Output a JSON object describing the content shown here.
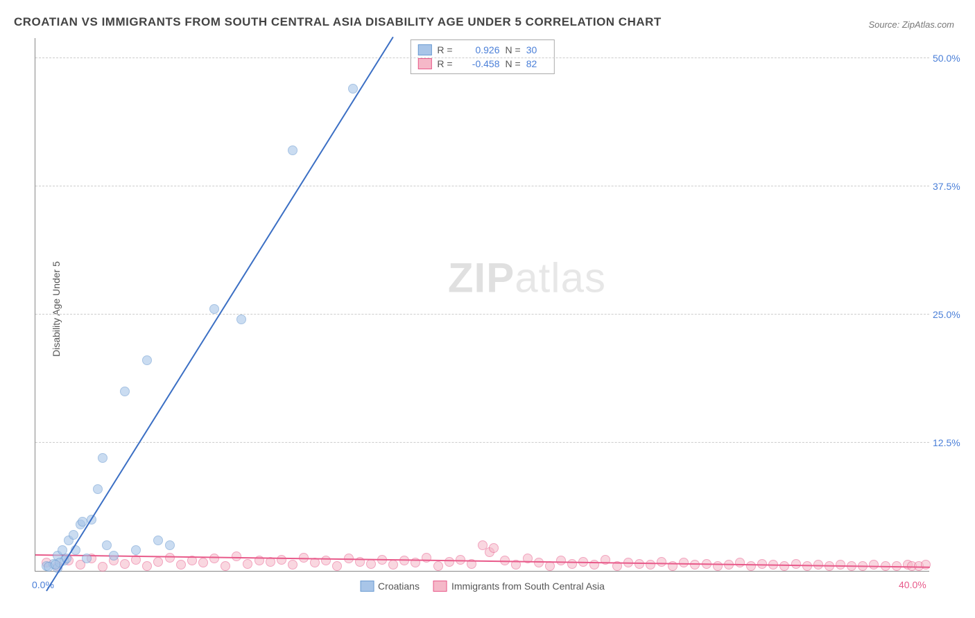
{
  "title": "CROATIAN VS IMMIGRANTS FROM SOUTH CENTRAL ASIA DISABILITY AGE UNDER 5 CORRELATION CHART",
  "source": "Source: ZipAtlas.com",
  "ylabel": "Disability Age Under 5",
  "watermark_bold": "ZIP",
  "watermark_rest": "atlas",
  "chart": {
    "type": "scatter",
    "background_color": "#ffffff",
    "grid_color": "#cccccc",
    "axis_color": "#888888",
    "xlim": [
      0,
      40
    ],
    "ylim": [
      0,
      52
    ],
    "yticks": [
      {
        "v": 12.5,
        "label": "12.5%"
      },
      {
        "v": 25.0,
        "label": "25.0%"
      },
      {
        "v": 37.5,
        "label": "37.5%"
      },
      {
        "v": 50.0,
        "label": "50.0%"
      }
    ],
    "xtick_left": {
      "v": 0,
      "label": "0.0%"
    },
    "xtick_right": {
      "v": 40,
      "label": "40.0%"
    },
    "label_fontsize": 14,
    "title_fontsize": 17
  },
  "series": {
    "croatians": {
      "label": "Croatians",
      "marker_color": "#a8c5e8",
      "marker_border": "#6b9bd1",
      "marker_opacity": 0.6,
      "marker_size": 14,
      "line_color": "#3b6fc4",
      "line_width": 2,
      "R": "0.926",
      "N": "30",
      "trend": {
        "x1": 0.5,
        "y1": -2,
        "x2": 16,
        "y2": 52
      },
      "points": [
        [
          0.5,
          0.5
        ],
        [
          0.8,
          0.7
        ],
        [
          1.0,
          1.5
        ],
        [
          1.2,
          2.0
        ],
        [
          1.3,
          1.0
        ],
        [
          1.5,
          3.0
        ],
        [
          1.7,
          3.5
        ],
        [
          1.8,
          2.0
        ],
        [
          2.0,
          4.5
        ],
        [
          2.1,
          4.8
        ],
        [
          2.3,
          1.2
        ],
        [
          2.5,
          5.0
        ],
        [
          2.8,
          8.0
        ],
        [
          3.0,
          11.0
        ],
        [
          3.2,
          2.5
        ],
        [
          3.5,
          1.5
        ],
        [
          4.0,
          17.5
        ],
        [
          4.5,
          2.0
        ],
        [
          5.0,
          20.5
        ],
        [
          5.5,
          3.0
        ],
        [
          6.0,
          2.5
        ],
        [
          8.0,
          25.5
        ],
        [
          9.2,
          24.5
        ],
        [
          11.5,
          41.0
        ],
        [
          14.2,
          47.0
        ],
        [
          1.0,
          0.3
        ],
        [
          0.6,
          0.4
        ],
        [
          1.1,
          0.8
        ],
        [
          1.4,
          1.2
        ],
        [
          0.9,
          0.6
        ]
      ]
    },
    "immigrants": {
      "label": "Immigrants from South Central Asia",
      "marker_color": "#f5b8c8",
      "marker_border": "#e85a8a",
      "marker_opacity": 0.55,
      "marker_size": 14,
      "line_color": "#e85a8a",
      "line_width": 2,
      "R": "-0.458",
      "N": "82",
      "trend": {
        "x1": 0,
        "y1": 1.5,
        "x2": 40,
        "y2": 0.3
      },
      "points": [
        [
          0.5,
          0.8
        ],
        [
          1.0,
          0.5
        ],
        [
          1.5,
          1.0
        ],
        [
          2.0,
          0.6
        ],
        [
          2.5,
          1.2
        ],
        [
          3.0,
          0.4
        ],
        [
          3.5,
          1.0
        ],
        [
          4.0,
          0.7
        ],
        [
          4.5,
          1.1
        ],
        [
          5.0,
          0.5
        ],
        [
          5.5,
          0.9
        ],
        [
          6.0,
          1.3
        ],
        [
          6.5,
          0.6
        ],
        [
          7.0,
          1.0
        ],
        [
          7.5,
          0.8
        ],
        [
          8.0,
          1.2
        ],
        [
          8.5,
          0.5
        ],
        [
          9.0,
          1.4
        ],
        [
          9.5,
          0.7
        ],
        [
          10.0,
          1.0
        ],
        [
          10.5,
          0.9
        ],
        [
          11.0,
          1.1
        ],
        [
          11.5,
          0.6
        ],
        [
          12.0,
          1.3
        ],
        [
          12.5,
          0.8
        ],
        [
          13.0,
          1.0
        ],
        [
          13.5,
          0.5
        ],
        [
          14.0,
          1.2
        ],
        [
          14.5,
          0.9
        ],
        [
          15.0,
          0.7
        ],
        [
          15.5,
          1.1
        ],
        [
          16.0,
          0.6
        ],
        [
          16.5,
          1.0
        ],
        [
          17.0,
          0.8
        ],
        [
          17.5,
          1.3
        ],
        [
          18.0,
          0.5
        ],
        [
          18.5,
          0.9
        ],
        [
          19.0,
          1.1
        ],
        [
          19.5,
          0.7
        ],
        [
          20.0,
          2.5
        ],
        [
          20.3,
          1.8
        ],
        [
          20.5,
          2.2
        ],
        [
          21.0,
          1.0
        ],
        [
          21.5,
          0.6
        ],
        [
          22.0,
          1.2
        ],
        [
          22.5,
          0.8
        ],
        [
          23.0,
          0.5
        ],
        [
          23.5,
          1.0
        ],
        [
          24.0,
          0.7
        ],
        [
          24.5,
          0.9
        ],
        [
          25.0,
          0.6
        ],
        [
          25.5,
          1.1
        ],
        [
          26.0,
          0.5
        ],
        [
          26.5,
          0.8
        ],
        [
          27.0,
          0.7
        ],
        [
          27.5,
          0.6
        ],
        [
          28.0,
          0.9
        ],
        [
          28.5,
          0.5
        ],
        [
          29.0,
          0.8
        ],
        [
          29.5,
          0.6
        ],
        [
          30.0,
          0.7
        ],
        [
          30.5,
          0.5
        ],
        [
          31.0,
          0.6
        ],
        [
          31.5,
          0.8
        ],
        [
          32.0,
          0.5
        ],
        [
          32.5,
          0.7
        ],
        [
          33.0,
          0.6
        ],
        [
          33.5,
          0.5
        ],
        [
          34.0,
          0.7
        ],
        [
          34.5,
          0.5
        ],
        [
          35.0,
          0.6
        ],
        [
          35.5,
          0.5
        ],
        [
          36.0,
          0.6
        ],
        [
          36.5,
          0.5
        ],
        [
          37.0,
          0.5
        ],
        [
          37.5,
          0.6
        ],
        [
          38.0,
          0.5
        ],
        [
          38.5,
          0.5
        ],
        [
          39.0,
          0.6
        ],
        [
          39.2,
          0.5
        ],
        [
          39.5,
          0.5
        ],
        [
          39.8,
          0.6
        ]
      ]
    }
  },
  "legend_r": {
    "r_label": "R =",
    "n_label": "N ="
  }
}
